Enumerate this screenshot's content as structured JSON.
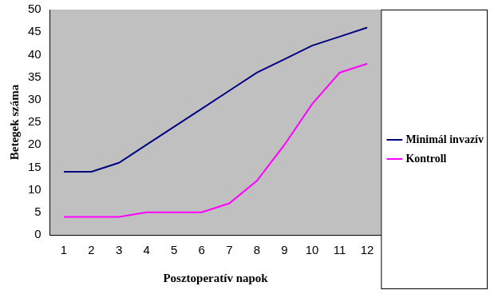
{
  "chart_data": {
    "type": "line",
    "x_label": "Posztoperatív napok",
    "y_label": "Betegek száma",
    "categories": [
      "1",
      "2",
      "3",
      "4",
      "5",
      "6",
      "7",
      "8",
      "9",
      "10",
      "11",
      "12"
    ],
    "series": [
      {
        "name": "Minimál invazív",
        "color": "#000080",
        "marker": "none",
        "line_style": "solid",
        "values": [
          14,
          14,
          16,
          20,
          24,
          28,
          32,
          36,
          39,
          42,
          44,
          46
        ]
      },
      {
        "name": "Kontroll",
        "color": "#ff00ff",
        "marker": "none",
        "line_style": "solid",
        "values": [
          4,
          4,
          4,
          5,
          5,
          5,
          7,
          12,
          20,
          29,
          36,
          38
        ]
      }
    ],
    "ylim": [
      0,
      50
    ],
    "yticks": [
      0,
      5,
      10,
      15,
      20,
      25,
      30,
      35,
      40,
      45,
      50
    ],
    "grid": false,
    "legend": "right"
  }
}
